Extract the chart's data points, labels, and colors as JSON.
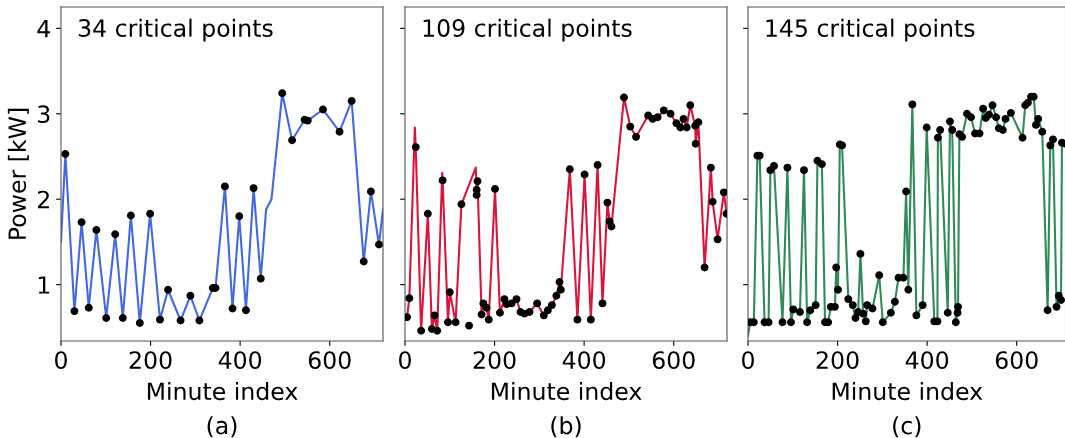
{
  "chart_data": [
    {
      "type": "line",
      "title": "34 critical points",
      "xlabel": "Minute index",
      "ylabel": "Power [kW]",
      "annotations": [
        "(a)"
      ],
      "xlim": [
        0,
        719
      ],
      "ylim": [
        0.34,
        4.25
      ],
      "xticks": [
        0,
        200,
        400,
        600
      ],
      "yticks": [
        1,
        2,
        3,
        4
      ],
      "grid": false,
      "legend": false,
      "series": [
        {
          "color": "#4169e1",
          "marker": "none",
          "x": [
            0,
            9.7,
            30,
            46,
            62,
            79,
            101,
            121,
            138,
            156,
            176,
            199,
            221,
            239,
            267,
            289,
            309,
            339,
            345,
            366,
            383,
            398,
            413,
            430,
            446,
            458,
            470,
            494,
            516,
            544,
            551,
            585,
            622,
            649,
            676,
            692,
            710,
            719
          ],
          "values": [
            1.5,
            2.53,
            0.69,
            1.73,
            0.73,
            1.64,
            0.61,
            1.59,
            0.61,
            1.81,
            0.55,
            1.83,
            0.59,
            0.94,
            0.58,
            0.87,
            0.58,
            0.96,
            0.96,
            2.15,
            0.72,
            1.8,
            0.7,
            2.13,
            1.07,
            1.88,
            2.0,
            3.24,
            2.69,
            2.93,
            2.92,
            3.05,
            2.79,
            3.15,
            1.27,
            2.09,
            1.47,
            1.88
          ]
        },
        {
          "type": "scatter",
          "color": "#000000",
          "marker": "circle",
          "x": [
            9.7,
            30,
            46,
            62,
            79,
            101,
            121,
            138,
            156,
            176,
            199,
            221,
            239,
            267,
            289,
            309,
            339,
            345,
            366,
            383,
            398,
            413,
            430,
            446,
            494,
            516,
            544,
            551,
            585,
            622,
            649,
            676,
            692,
            710
          ],
          "values": [
            2.53,
            0.69,
            1.73,
            0.73,
            1.64,
            0.61,
            1.59,
            0.61,
            1.81,
            0.55,
            1.83,
            0.59,
            0.94,
            0.58,
            0.87,
            0.58,
            0.96,
            0.96,
            2.15,
            0.72,
            1.8,
            0.7,
            2.13,
            1.07,
            3.24,
            2.69,
            2.93,
            2.92,
            3.05,
            2.79,
            3.15,
            1.27,
            2.09,
            1.47
          ]
        }
      ]
    },
    {
      "type": "line",
      "title": "109 critical points",
      "xlabel": "Minute index",
      "annotations": [
        "(b)"
      ],
      "xlim": [
        0,
        719
      ],
      "ylim": [
        0.34,
        4.25
      ],
      "xticks": [
        0,
        200,
        400,
        600
      ],
      "yticks": [
        1,
        2,
        3,
        4
      ],
      "tick_labels": "x",
      "grid": false,
      "legend": false,
      "series": [
        {
          "color": "#dc143c",
          "marker": "none",
          "x": [
            0,
            4.5,
            9.7,
            22,
            24,
            36,
            51,
            60,
            66,
            72,
            83,
            84,
            96,
            100,
            113,
            126,
            158,
            160,
            162,
            171,
            175,
            182,
            187,
            201,
            212,
            222,
            227,
            238,
            249,
            258,
            267,
            278,
            295,
            310,
            319,
            328,
            338,
            345,
            348,
            368,
            385,
            401,
            415,
            430,
            441,
            452,
            457,
            461,
            489,
            503,
            516,
            543,
            553,
            564,
            578,
            593,
            606,
            615,
            622,
            629,
            637,
            648,
            649,
            655,
            669,
            683,
            687,
            698,
            712,
            718
          ],
          "values": [
            0.62,
            0.62,
            0.84,
            2.84,
            2.61,
            0.46,
            1.83,
            0.48,
            0.64,
            0.46,
            2.31,
            2.22,
            0.56,
            0.91,
            0.56,
            1.94,
            2.37,
            2.11,
            2.21,
            0.65,
            0.78,
            0.73,
            0.59,
            2.12,
            0.67,
            0.83,
            0.77,
            0.78,
            0.83,
            0.68,
            0.66,
            0.68,
            0.78,
            0.64,
            0.7,
            0.76,
            0.87,
            1.03,
            0.94,
            2.35,
            0.59,
            2.29,
            0.59,
            2.4,
            0.78,
            1.96,
            1.74,
            1.68,
            3.19,
            2.85,
            2.73,
            2.98,
            2.94,
            2.96,
            3.04,
            3.0,
            2.89,
            2.84,
            2.94,
            2.84,
            3.1,
            2.86,
            2.65,
            2.9,
            1.2,
            2.37,
            1.97,
            1.53,
            2.08,
            1.83
          ]
        },
        {
          "type": "scatter",
          "color": "#000000",
          "marker": "circle",
          "x": [
            4.5,
            9.7,
            24,
            36,
            51,
            60,
            66,
            72,
            84,
            96,
            100,
            113,
            126,
            143,
            160,
            160,
            162,
            171,
            175,
            182,
            187,
            201,
            212,
            222,
            227,
            238,
            249,
            258,
            267,
            278,
            295,
            310,
            319,
            328,
            338,
            345,
            348,
            368,
            385,
            401,
            415,
            430,
            441,
            452,
            457,
            461,
            489,
            503,
            516,
            543,
            553,
            564,
            578,
            593,
            606,
            615,
            622,
            629,
            637,
            648,
            649,
            655,
            669,
            683,
            687,
            698,
            712,
            718
          ],
          "values": [
            0.62,
            0.84,
            2.61,
            0.46,
            1.83,
            0.48,
            0.64,
            0.46,
            2.22,
            0.56,
            0.91,
            0.56,
            1.94,
            0.52,
            2.05,
            2.11,
            2.21,
            0.65,
            0.78,
            0.73,
            0.59,
            2.12,
            0.67,
            0.83,
            0.77,
            0.78,
            0.83,
            0.68,
            0.66,
            0.68,
            0.78,
            0.64,
            0.7,
            0.76,
            0.87,
            1.03,
            0.94,
            2.35,
            0.59,
            2.29,
            0.59,
            2.4,
            0.78,
            1.96,
            1.74,
            1.68,
            3.19,
            2.85,
            2.73,
            2.98,
            2.94,
            2.96,
            3.04,
            3.0,
            2.89,
            2.84,
            2.94,
            2.84,
            3.1,
            2.86,
            2.65,
            2.9,
            1.2,
            2.37,
            1.97,
            1.53,
            2.08,
            1.83
          ]
        }
      ]
    },
    {
      "type": "line",
      "title": "145 critical points",
      "xlabel": "Minute index",
      "annotations": [
        "(c)"
      ],
      "xlim": [
        0,
        709
      ],
      "ylim": [
        0.34,
        4.25
      ],
      "xticks": [
        0,
        200,
        400,
        600
      ],
      "yticks": [
        1,
        2,
        3,
        4
      ],
      "tick_labels": "x",
      "grid": false,
      "legend": false,
      "series": [
        {
          "color": "#2e8b57",
          "marker": "none",
          "x": [
            0,
            5,
            13,
            21,
            26,
            37,
            46,
            50,
            58,
            77,
            88,
            96,
            101,
            116,
            125,
            132,
            139,
            151,
            155,
            165,
            172,
            179,
            185,
            194,
            197,
            201,
            205,
            210,
            224,
            234,
            240,
            246,
            251,
            257,
            263,
            266,
            278,
            293,
            301,
            319,
            328,
            336,
            347,
            353,
            358,
            367,
            376,
            390,
            399,
            416,
            423,
            424,
            429,
            446,
            451,
            456,
            464,
            468,
            469,
            472,
            478,
            489,
            498,
            507,
            517,
            525,
            531,
            538,
            546,
            554,
            560,
            569,
            575,
            587,
            613,
            619,
            625,
            632,
            638,
            643,
            648,
            657,
            669,
            675,
            681,
            689,
            694,
            699,
            701,
            709
          ],
          "values": [
            0.4,
            0.56,
            0.56,
            2.51,
            2.51,
            0.56,
            0.56,
            2.34,
            2.39,
            0.56,
            2.37,
            0.56,
            0.71,
            0.68,
            2.34,
            0.56,
            0.7,
            0.76,
            2.45,
            2.41,
            0.56,
            0.56,
            0.74,
            0.74,
            1.2,
            0.94,
            2.64,
            2.63,
            0.83,
            0.76,
            0.61,
            0.68,
            1.36,
            0.66,
            0.57,
            0.76,
            0.72,
            1.11,
            0.56,
            0.67,
            0.8,
            1.08,
            1.08,
            2.09,
            0.94,
            3.11,
            0.64,
            0.76,
            2.84,
            0.57,
            0.57,
            2.72,
            2.81,
            0.67,
            2.91,
            2.81,
            0.56,
            0.67,
            0.74,
            2.76,
            2.73,
            3.0,
            2.96,
            2.77,
            2.77,
            3.06,
            2.95,
            2.99,
            3.1,
            2.96,
            2.83,
            2.81,
            2.94,
            3.01,
            2.72,
            3.1,
            3.13,
            3.2,
            3.2,
            2.87,
            2.94,
            2.79,
            0.7,
            2.63,
            2.7,
            0.74,
            0.87,
            0.82,
            2.66,
            2.65
          ]
        },
        {
          "type": "scatter",
          "color": "#000000",
          "marker": "circle",
          "x": [
            5,
            13,
            21,
            26,
            37,
            46,
            50,
            58,
            77,
            88,
            96,
            101,
            116,
            125,
            132,
            139,
            151,
            155,
            165,
            172,
            179,
            185,
            194,
            197,
            201,
            205,
            210,
            224,
            234,
            240,
            246,
            251,
            257,
            263,
            266,
            278,
            293,
            301,
            319,
            328,
            336,
            347,
            353,
            358,
            367,
            376,
            390,
            399,
            416,
            423,
            424,
            429,
            446,
            451,
            456,
            464,
            468,
            469,
            472,
            478,
            489,
            498,
            507,
            517,
            525,
            531,
            538,
            546,
            554,
            560,
            569,
            575,
            587,
            613,
            619,
            625,
            632,
            638,
            643,
            648,
            657,
            669,
            675,
            681,
            689,
            694,
            699,
            701,
            709
          ],
          "values": [
            0.56,
            0.56,
            2.51,
            2.51,
            0.56,
            0.56,
            2.34,
            2.39,
            0.56,
            2.37,
            0.56,
            0.71,
            0.68,
            2.34,
            0.56,
            0.7,
            0.76,
            2.45,
            2.41,
            0.56,
            0.56,
            0.74,
            0.74,
            1.2,
            0.94,
            2.64,
            2.63,
            0.83,
            0.76,
            0.61,
            0.68,
            1.36,
            0.66,
            0.57,
            0.76,
            0.72,
            1.11,
            0.56,
            0.67,
            0.8,
            1.08,
            1.08,
            2.09,
            0.94,
            3.11,
            0.64,
            0.76,
            2.84,
            0.57,
            0.57,
            2.72,
            2.81,
            0.67,
            2.91,
            2.81,
            0.56,
            0.67,
            0.74,
            2.76,
            2.73,
            3.0,
            2.96,
            2.77,
            2.77,
            3.06,
            2.95,
            2.99,
            3.1,
            2.96,
            2.83,
            2.81,
            2.94,
            3.01,
            2.72,
            3.1,
            3.13,
            3.2,
            3.2,
            2.87,
            2.94,
            2.79,
            0.7,
            2.63,
            2.7,
            0.74,
            0.87,
            0.82,
            2.66,
            2.65
          ]
        }
      ]
    }
  ]
}
